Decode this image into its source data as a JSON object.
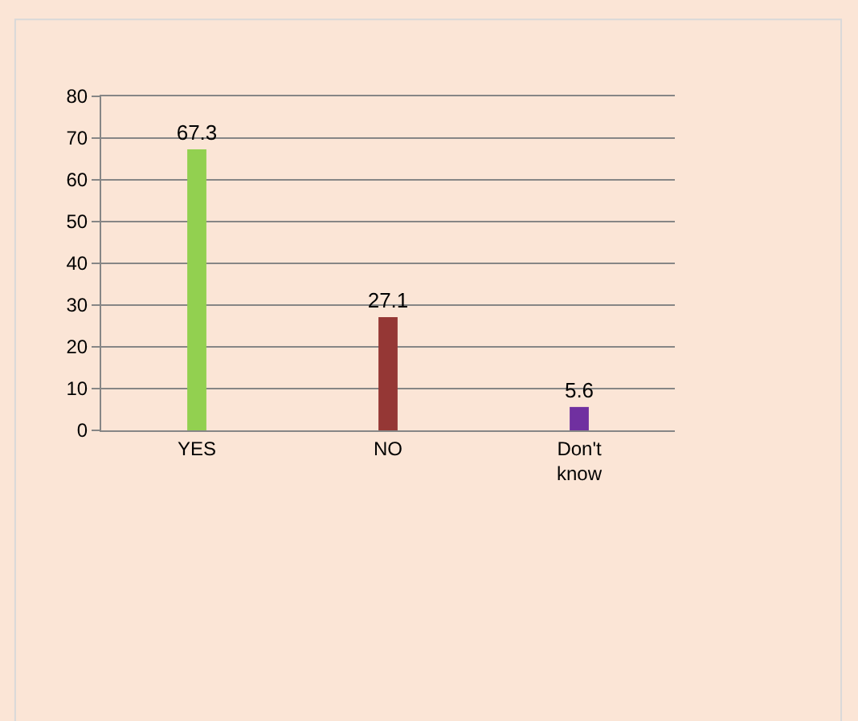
{
  "chart_data": {
    "type": "bar",
    "categories": [
      "YES",
      "NO",
      "Don't know"
    ],
    "values": [
      67.3,
      27.1,
      5.6
    ],
    "colors": [
      "#92d050",
      "#953735",
      "#7030a0"
    ],
    "ylim": [
      0,
      80
    ],
    "yticks": [
      0,
      10,
      20,
      30,
      40,
      50,
      60,
      70,
      80
    ],
    "grid": "y",
    "data_labels": true
  }
}
